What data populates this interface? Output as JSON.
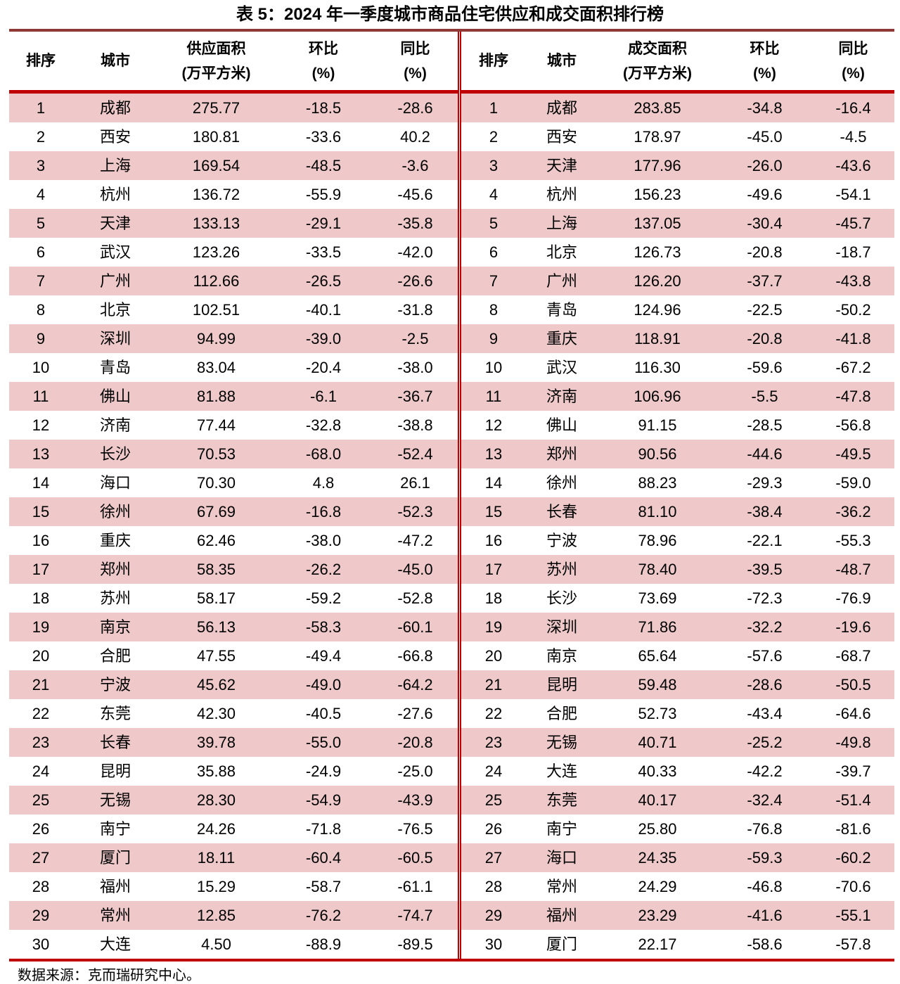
{
  "title": "表 5：2024 年一季度城市商品住宅供应和成交面积排行榜",
  "source": "数据来源：克而瑞研究中心。",
  "colors": {
    "outer_top_border": "#8F3836",
    "accent_red": "#C00000",
    "row_pink": "#EFC9C9"
  },
  "supply_table": {
    "headers": {
      "rank": "排序",
      "city": "城市",
      "metric_line1": "供应面积",
      "metric_line2": "(万平方米)",
      "mom_line1": "环比",
      "mom_line2": "(%)",
      "yoy_line1": "同比",
      "yoy_line2": "(%)"
    },
    "rows": [
      [
        "1",
        "成都",
        "275.77",
        "-18.5",
        "-28.6"
      ],
      [
        "2",
        "西安",
        "180.81",
        "-33.6",
        "40.2"
      ],
      [
        "3",
        "上海",
        "169.54",
        "-48.5",
        "-3.6"
      ],
      [
        "4",
        "杭州",
        "136.72",
        "-55.9",
        "-45.6"
      ],
      [
        "5",
        "天津",
        "133.13",
        "-29.1",
        "-35.8"
      ],
      [
        "6",
        "武汉",
        "123.26",
        "-33.5",
        "-42.0"
      ],
      [
        "7",
        "广州",
        "112.66",
        "-26.5",
        "-26.6"
      ],
      [
        "8",
        "北京",
        "102.51",
        "-40.1",
        "-31.8"
      ],
      [
        "9",
        "深圳",
        "94.99",
        "-39.0",
        "-2.5"
      ],
      [
        "10",
        "青岛",
        "83.04",
        "-20.4",
        "-38.0"
      ],
      [
        "11",
        "佛山",
        "81.88",
        "-6.1",
        "-36.7"
      ],
      [
        "12",
        "济南",
        "77.44",
        "-32.8",
        "-38.8"
      ],
      [
        "13",
        "长沙",
        "70.53",
        "-68.0",
        "-52.4"
      ],
      [
        "14",
        "海口",
        "70.30",
        "4.8",
        "26.1"
      ],
      [
        "15",
        "徐州",
        "67.69",
        "-16.8",
        "-52.3"
      ],
      [
        "16",
        "重庆",
        "62.46",
        "-38.0",
        "-47.2"
      ],
      [
        "17",
        "郑州",
        "58.35",
        "-26.2",
        "-45.0"
      ],
      [
        "18",
        "苏州",
        "58.17",
        "-59.2",
        "-52.8"
      ],
      [
        "19",
        "南京",
        "56.13",
        "-58.3",
        "-60.1"
      ],
      [
        "20",
        "合肥",
        "47.55",
        "-49.4",
        "-66.8"
      ],
      [
        "21",
        "宁波",
        "45.62",
        "-49.0",
        "-64.2"
      ],
      [
        "22",
        "东莞",
        "42.30",
        "-40.5",
        "-27.6"
      ],
      [
        "23",
        "长春",
        "39.78",
        "-55.0",
        "-20.8"
      ],
      [
        "24",
        "昆明",
        "35.88",
        "-24.9",
        "-25.0"
      ],
      [
        "25",
        "无锡",
        "28.30",
        "-54.9",
        "-43.9"
      ],
      [
        "26",
        "南宁",
        "24.26",
        "-71.8",
        "-76.5"
      ],
      [
        "27",
        "厦门",
        "18.11",
        "-60.4",
        "-60.5"
      ],
      [
        "28",
        "福州",
        "15.29",
        "-58.7",
        "-61.1"
      ],
      [
        "29",
        "常州",
        "12.85",
        "-76.2",
        "-74.7"
      ],
      [
        "30",
        "大连",
        "4.50",
        "-88.9",
        "-89.5"
      ]
    ]
  },
  "transaction_table": {
    "headers": {
      "rank": "排序",
      "city": "城市",
      "metric_line1": "成交面积",
      "metric_line2": "(万平方米)",
      "mom_line1": "环比",
      "mom_line2": "(%)",
      "yoy_line1": "同比",
      "yoy_line2": "(%)"
    },
    "rows": [
      [
        "1",
        "成都",
        "283.85",
        "-34.8",
        "-16.4"
      ],
      [
        "2",
        "西安",
        "178.97",
        "-45.0",
        "-4.5"
      ],
      [
        "3",
        "天津",
        "177.96",
        "-26.0",
        "-43.6"
      ],
      [
        "4",
        "杭州",
        "156.23",
        "-49.6",
        "-54.1"
      ],
      [
        "5",
        "上海",
        "137.05",
        "-30.4",
        "-45.7"
      ],
      [
        "6",
        "北京",
        "126.73",
        "-20.8",
        "-18.7"
      ],
      [
        "7",
        "广州",
        "126.20",
        "-37.7",
        "-43.8"
      ],
      [
        "8",
        "青岛",
        "124.96",
        "-22.5",
        "-50.2"
      ],
      [
        "9",
        "重庆",
        "118.91",
        "-20.8",
        "-41.8"
      ],
      [
        "10",
        "武汉",
        "116.30",
        "-59.6",
        "-67.2"
      ],
      [
        "11",
        "济南",
        "106.96",
        "-5.5",
        "-47.8"
      ],
      [
        "12",
        "佛山",
        "91.15",
        "-28.5",
        "-56.8"
      ],
      [
        "13",
        "郑州",
        "90.56",
        "-44.6",
        "-49.5"
      ],
      [
        "14",
        "徐州",
        "88.23",
        "-29.3",
        "-59.0"
      ],
      [
        "15",
        "长春",
        "81.10",
        "-38.4",
        "-36.2"
      ],
      [
        "16",
        "宁波",
        "78.96",
        "-22.1",
        "-55.3"
      ],
      [
        "17",
        "苏州",
        "78.40",
        "-39.5",
        "-48.7"
      ],
      [
        "18",
        "长沙",
        "73.69",
        "-72.3",
        "-76.9"
      ],
      [
        "19",
        "深圳",
        "71.86",
        "-32.2",
        "-19.6"
      ],
      [
        "20",
        "南京",
        "65.64",
        "-57.6",
        "-68.7"
      ],
      [
        "21",
        "昆明",
        "59.48",
        "-28.6",
        "-50.5"
      ],
      [
        "22",
        "合肥",
        "52.73",
        "-43.4",
        "-64.6"
      ],
      [
        "23",
        "无锡",
        "40.71",
        "-25.2",
        "-49.8"
      ],
      [
        "24",
        "大连",
        "40.33",
        "-42.2",
        "-39.7"
      ],
      [
        "25",
        "东莞",
        "40.17",
        "-32.4",
        "-51.4"
      ],
      [
        "26",
        "南宁",
        "25.80",
        "-76.8",
        "-81.6"
      ],
      [
        "27",
        "海口",
        "24.35",
        "-59.3",
        "-60.2"
      ],
      [
        "28",
        "常州",
        "24.29",
        "-46.8",
        "-70.6"
      ],
      [
        "29",
        "福州",
        "23.29",
        "-41.6",
        "-55.1"
      ],
      [
        "30",
        "厦门",
        "22.17",
        "-58.6",
        "-57.8"
      ]
    ]
  }
}
